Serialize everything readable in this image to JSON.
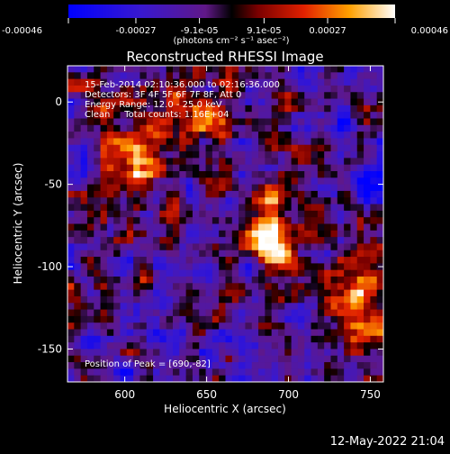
{
  "chart_data": {
    "type": "heatmap",
    "title": "Reconstructed RHESSI Image",
    "xlabel": "Heliocentric X (arcsec)",
    "ylabel": "Heliocentric Y (arcsec)",
    "xlim": [
      565,
      758
    ],
    "ylim": [
      -170,
      22
    ],
    "x_ticks": [
      600,
      650,
      700,
      750
    ],
    "y_ticks": [
      0,
      -50,
      -100,
      -150
    ],
    "colorbar": {
      "min": -0.00046,
      "max": 0.00046,
      "tick_values": [
        -0.00046,
        -0.00027,
        -9.1e-05,
        9.1e-05,
        0.00027,
        0.00046
      ],
      "tick_labels": [
        "-0.00046",
        "-0.00027",
        "-9.1e-05",
        "9.1e-05",
        "0.00027",
        "0.00046"
      ],
      "unit_label": "(photons cm⁻² s⁻¹ asec⁻²)"
    },
    "annotations": [
      "15-Feb-2014 02:10:36.000 to 02:16:36.000",
      "Detectors: 3F 4F 5F 6F 7F 8F, Att 0",
      "Energy Range: 12.0 - 25.0 keV",
      "Clean     Total counts: 1.16E+04"
    ],
    "peak_label": "Position of Peak = [690,-82]",
    "peak": [
      690,
      -82
    ],
    "sources": [
      {
        "x": 690,
        "y": -82,
        "value": 0.00046
      },
      {
        "x": 612,
        "y": -42,
        "value": 0.00032
      },
      {
        "x": 600,
        "y": -10,
        "value": 0.00024
      },
      {
        "x": 643,
        "y": -5,
        "value": 0.00022
      },
      {
        "x": 752,
        "y": -98,
        "value": 0.00025
      },
      {
        "x": 733,
        "y": -123,
        "value": 0.00018
      },
      {
        "x": 742,
        "y": -150,
        "value": 0.00014
      },
      {
        "x": 700,
        "y": -40,
        "value": 0.00012
      }
    ]
  },
  "footer": {
    "timestamp": "12-May-2022 21:04"
  },
  "colors": {
    "background": "#000000",
    "foreground": "#ffffff"
  }
}
